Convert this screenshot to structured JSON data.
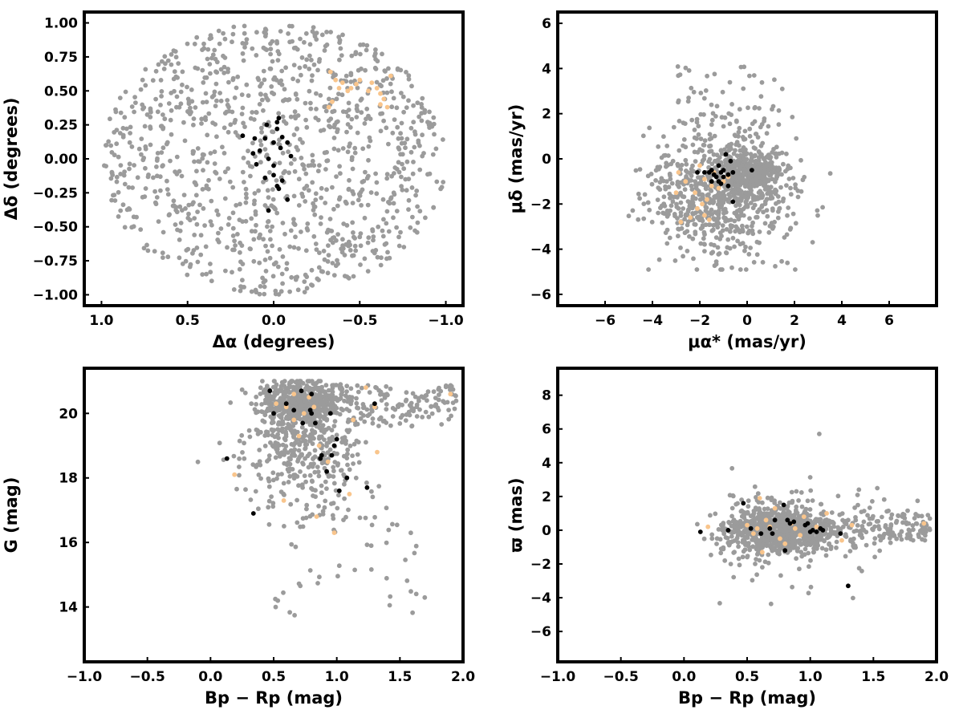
{
  "colors": {
    "field": "#9b9b9b",
    "member": "#000000",
    "candidate": "#f9c58c",
    "frame": "#000000"
  },
  "chart_data": [
    {
      "type": "scatter",
      "panel": "top-left",
      "xlabel": "Δα (degrees)",
      "ylabel": "Δδ (degrees)",
      "xlim": [
        1.1,
        -1.1
      ],
      "ylim": [
        -1.08,
        1.08
      ],
      "xticks": [
        1.0,
        0.5,
        0.0,
        -0.5,
        -1.0
      ],
      "xtick_labels": [
        "1.0",
        "0.5",
        "0.0",
        "−0.5",
        "−1.0"
      ],
      "yticks": [
        1.0,
        0.75,
        0.5,
        0.25,
        0.0,
        -0.25,
        -0.5,
        -0.75,
        -1.0
      ],
      "ytick_labels": [
        "1.00",
        "0.75",
        "0.50",
        "0.25",
        "0.00",
        "−0.25",
        "−0.50",
        "−0.75",
        "−1.00"
      ],
      "series": [
        {
          "role": "field",
          "color": "#9b9b9b",
          "count": 1100,
          "distribution": "uniform-disk",
          "center": [
            0,
            0
          ],
          "radius": 1.0
        },
        {
          "role": "candidate",
          "color": "#f9c58c",
          "points": [
            [
              -0.33,
              0.64
            ],
            [
              -0.36,
              0.58
            ],
            [
              -0.4,
              0.56
            ],
            [
              -0.45,
              0.52
            ],
            [
              -0.48,
              0.55
            ],
            [
              -0.5,
              0.58
            ],
            [
              -0.43,
              0.5
            ],
            [
              -0.55,
              0.5
            ],
            [
              -0.57,
              0.56
            ],
            [
              -0.6,
              0.52
            ],
            [
              -0.62,
              0.48
            ],
            [
              -0.64,
              0.44
            ],
            [
              -0.66,
              0.38
            ],
            [
              -0.62,
              0.4
            ],
            [
              -0.34,
              0.42
            ],
            [
              -0.32,
              0.38
            ],
            [
              -0.68,
              0.61
            ],
            [
              -0.38,
              0.52
            ]
          ]
        },
        {
          "role": "member",
          "color": "#000000",
          "points": [
            [
              -0.03,
              0.3
            ],
            [
              -0.02,
              0.27
            ],
            [
              -0.02,
              0.22
            ],
            [
              0.04,
              0.25
            ],
            [
              -0.05,
              0.16
            ],
            [
              0.0,
              0.12
            ],
            [
              0.05,
              0.15
            ],
            [
              0.08,
              0.06
            ],
            [
              -0.08,
              0.12
            ],
            [
              0.18,
              0.17
            ],
            [
              0.11,
              0.15
            ],
            [
              -0.04,
              0.08
            ],
            [
              -0.1,
              0.02
            ],
            [
              0.03,
              0.0
            ],
            [
              0.0,
              -0.05
            ],
            [
              0.1,
              -0.04
            ],
            [
              0.05,
              -0.14
            ],
            [
              0.0,
              -0.12
            ],
            [
              -0.05,
              -0.16
            ],
            [
              -0.02,
              -0.2
            ],
            [
              -0.08,
              -0.3
            ],
            [
              0.03,
              -0.38
            ],
            [
              -0.03,
              -0.22
            ],
            [
              0.12,
              0.04
            ]
          ]
        }
      ]
    },
    {
      "type": "scatter",
      "panel": "top-right",
      "xlabel": "μα* (mas/yr)",
      "ylabel": "μδ (mas/yr)",
      "xlim": [
        -8,
        8
      ],
      "ylim": [
        -6.5,
        6.5
      ],
      "xticks": [
        -6,
        -4,
        -2,
        0,
        2,
        4,
        6
      ],
      "xtick_labels": [
        "−6",
        "−4",
        "−2",
        "0",
        "2",
        "4",
        "6"
      ],
      "yticks": [
        6,
        4,
        2,
        0,
        -2,
        -4,
        -6
      ],
      "ytick_labels": [
        "6",
        "4",
        "2",
        "0",
        "−2",
        "−4",
        "−6"
      ],
      "series": [
        {
          "role": "field",
          "color": "#9b9b9b",
          "count": 1100,
          "distribution": "elliptical-cloud",
          "center": [
            -1.0,
            -1.5
          ],
          "spread": [
            3.2,
            1.9
          ]
        },
        {
          "role": "candidate",
          "color": "#f9c58c",
          "points": [
            [
              -2.0,
              -0.3
            ],
            [
              -1.8,
              -0.9
            ],
            [
              -1.5,
              -1.2
            ],
            [
              -2.2,
              -1.5
            ],
            [
              -1.9,
              -2.0
            ],
            [
              -1.6,
              -2.7
            ],
            [
              -2.4,
              -2.6
            ],
            [
              -2.8,
              -2.8
            ],
            [
              -3.0,
              -1.5
            ],
            [
              -2.6,
              -1.0
            ],
            [
              -1.2,
              -1.3
            ],
            [
              -0.8,
              -0.8
            ],
            [
              -1.4,
              -0.6
            ],
            [
              -1.7,
              -1.8
            ],
            [
              -2.1,
              -2.2
            ],
            [
              -1.0,
              -1.0
            ],
            [
              -2.9,
              -0.6
            ],
            [
              -1.8,
              -2.5
            ]
          ]
        },
        {
          "role": "member",
          "color": "#000000",
          "points": [
            [
              -2.1,
              -0.6
            ],
            [
              -1.8,
              -0.6
            ],
            [
              -1.5,
              -0.5
            ],
            [
              -1.3,
              -0.8
            ],
            [
              -1.1,
              -0.6
            ],
            [
              -1.0,
              -0.8
            ],
            [
              -1.2,
              -1.0
            ],
            [
              -0.8,
              -0.7
            ],
            [
              -0.9,
              0.2
            ],
            [
              -1.2,
              -0.3
            ],
            [
              -0.6,
              -0.6
            ],
            [
              -1.5,
              -1.0
            ],
            [
              -0.8,
              -1.2
            ],
            [
              -0.6,
              -1.9
            ],
            [
              -1.0,
              -0.5
            ],
            [
              -1.4,
              -0.7
            ],
            [
              -0.7,
              -0.1
            ],
            [
              0.2,
              -0.5
            ],
            [
              -1.6,
              -0.6
            ],
            [
              -1.1,
              -1.1
            ]
          ]
        }
      ]
    },
    {
      "type": "scatter",
      "panel": "bottom-left",
      "xlabel": "Bp − Rp (mag)",
      "ylabel": "G (mag)",
      "xlim": [
        -1.0,
        2.0
      ],
      "ylim": [
        12.3,
        21.4
      ],
      "xticks": [
        -1.0,
        -0.5,
        0.0,
        0.5,
        1.0,
        1.5,
        2.0
      ],
      "xtick_labels": [
        "−1.0",
        "−0.5",
        "0.0",
        "0.5",
        "1.0",
        "1.5",
        "2.0"
      ],
      "yticks": [
        20,
        18,
        16,
        14
      ],
      "ytick_labels": [
        "20",
        "18",
        "16",
        "14"
      ],
      "series": [
        {
          "role": "field",
          "color": "#9b9b9b",
          "count": 1100,
          "distribution": "cmd-cloud",
          "center": [
            0.75,
            20.2
          ]
        },
        {
          "role": "candidate",
          "color": "#f9c58c",
          "points": [
            [
              0.19,
              18.1
            ],
            [
              0.52,
              20.3
            ],
            [
              0.6,
              20.2
            ],
            [
              0.66,
              19.8
            ],
            [
              0.7,
              19.3
            ],
            [
              0.78,
              20.5
            ],
            [
              0.82,
              20.2
            ],
            [
              0.86,
              19.0
            ],
            [
              0.93,
              18.5
            ],
            [
              1.1,
              17.5
            ],
            [
              1.13,
              19.8
            ],
            [
              1.23,
              20.8
            ],
            [
              1.3,
              20.2
            ],
            [
              1.32,
              18.8
            ],
            [
              1.9,
              20.6
            ],
            [
              0.84,
              16.8
            ],
            [
              0.98,
              16.3
            ],
            [
              0.58,
              17.3
            ],
            [
              0.74,
              20.0
            ],
            [
              0.66,
              20.6
            ]
          ]
        },
        {
          "role": "member",
          "color": "#000000",
          "points": [
            [
              0.47,
              20.7
            ],
            [
              0.5,
              20.0
            ],
            [
              0.6,
              20.3
            ],
            [
              0.72,
              20.7
            ],
            [
              0.73,
              19.7
            ],
            [
              0.79,
              20.1
            ],
            [
              0.8,
              20.0
            ],
            [
              0.8,
              20.6
            ],
            [
              0.83,
              19.7
            ],
            [
              0.87,
              18.6
            ],
            [
              0.88,
              18.7
            ],
            [
              0.92,
              18.2
            ],
            [
              0.96,
              18.7
            ],
            [
              0.98,
              19.0
            ],
            [
              0.95,
              20.0
            ],
            [
              1.0,
              19.2
            ],
            [
              1.02,
              17.6
            ],
            [
              1.08,
              18.0
            ],
            [
              1.24,
              17.7
            ],
            [
              1.3,
              20.3
            ],
            [
              0.13,
              18.6
            ],
            [
              0.34,
              16.9
            ],
            [
              0.66,
              20.1
            ]
          ]
        }
      ]
    },
    {
      "type": "scatter",
      "panel": "bottom-right",
      "xlabel": "Bp − Rp (mag)",
      "ylabel": "ϖ (mas)",
      "xlim": [
        -1.0,
        2.0
      ],
      "ylim": [
        -7.8,
        9.6
      ],
      "xticks": [
        -1.0,
        -0.5,
        0.0,
        0.5,
        1.0,
        1.5,
        2.0
      ],
      "xtick_labels": [
        "−1.0",
        "−0.5",
        "0.0",
        "0.5",
        "1.0",
        "1.5",
        "2.0"
      ],
      "yticks": [
        8,
        6,
        4,
        2,
        0,
        -2,
        -4,
        -6
      ],
      "ytick_labels": [
        "8",
        "6",
        "4",
        "2",
        "0",
        "−2",
        "−4",
        "−6"
      ],
      "series": [
        {
          "role": "field",
          "color": "#9b9b9b",
          "count": 1100,
          "distribution": "parallax-cloud",
          "center": [
            0.75,
            0.0
          ]
        },
        {
          "role": "candidate",
          "color": "#f9c58c",
          "points": [
            [
              0.19,
              0.2
            ],
            [
              0.5,
              0.3
            ],
            [
              0.55,
              -0.2
            ],
            [
              0.58,
              0.1
            ],
            [
              0.6,
              1.9
            ],
            [
              0.62,
              -1.3
            ],
            [
              0.68,
              0.2
            ],
            [
              0.72,
              1.3
            ],
            [
              0.76,
              -0.5
            ],
            [
              0.8,
              -0.8
            ],
            [
              0.85,
              0.4
            ],
            [
              0.88,
              0.1
            ],
            [
              0.92,
              -0.3
            ],
            [
              1.05,
              0.2
            ],
            [
              1.13,
              1.0
            ],
            [
              1.25,
              -0.6
            ],
            [
              1.33,
              0.3
            ],
            [
              1.9,
              0.4
            ],
            [
              0.65,
              0.6
            ],
            [
              0.95,
              0.8
            ]
          ]
        },
        {
          "role": "member",
          "color": "#000000",
          "points": [
            [
              0.13,
              -0.1
            ],
            [
              0.35,
              0.0
            ],
            [
              0.47,
              1.6
            ],
            [
              0.53,
              0.1
            ],
            [
              0.61,
              -0.2
            ],
            [
              0.68,
              0.1
            ],
            [
              0.72,
              0.6
            ],
            [
              0.79,
              1.5
            ],
            [
              0.8,
              -1.2
            ],
            [
              0.84,
              0.4
            ],
            [
              0.87,
              0.5
            ],
            [
              0.96,
              0.3
            ],
            [
              0.98,
              0.4
            ],
            [
              1.0,
              -0.1
            ],
            [
              1.02,
              0.0
            ],
            [
              1.05,
              -0.1
            ],
            [
              1.1,
              0.0
            ],
            [
              1.24,
              -0.2
            ],
            [
              1.3,
              -3.3
            ],
            [
              0.82,
              0.6
            ],
            [
              0.7,
              -0.2
            ],
            [
              1.08,
              0.1
            ]
          ]
        }
      ]
    }
  ]
}
